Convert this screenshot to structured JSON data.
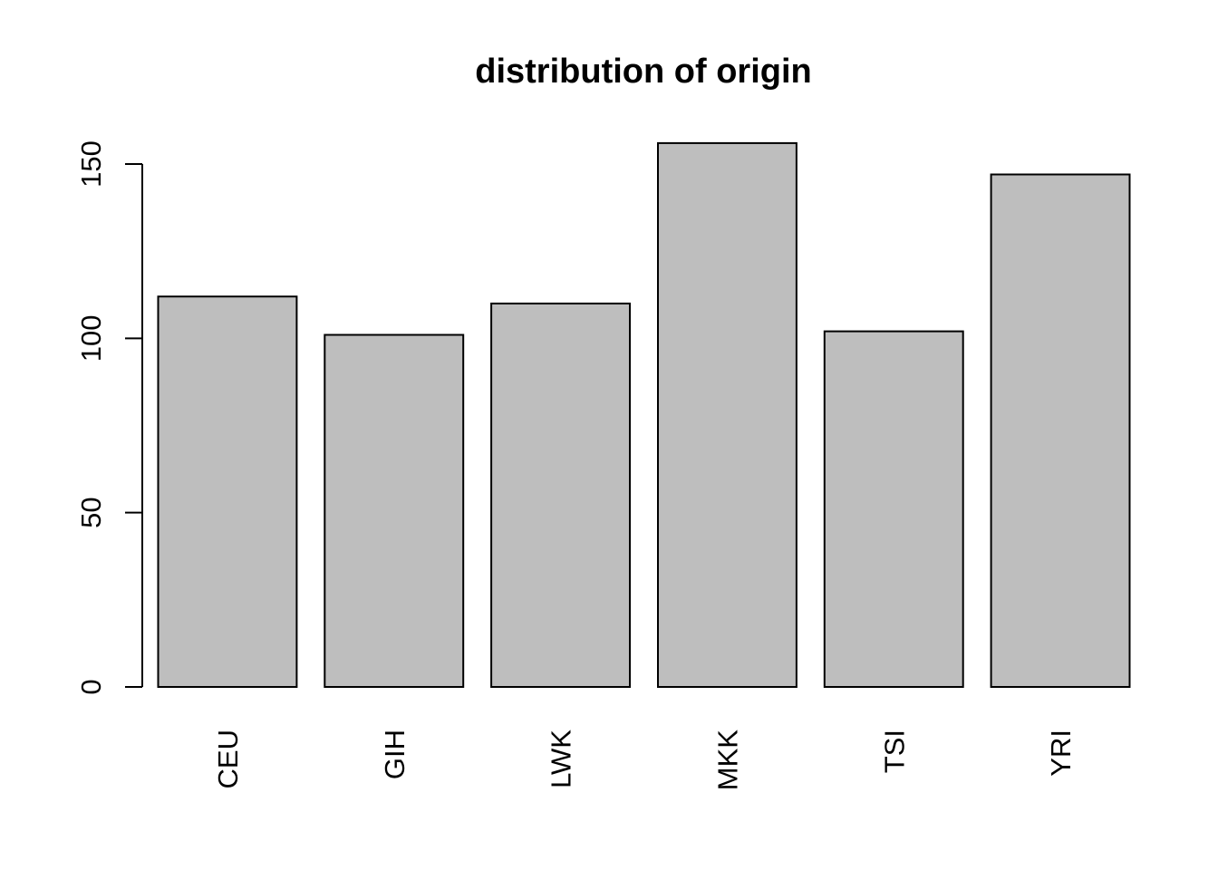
{
  "chart_data": {
    "type": "bar",
    "title": "distribution of origin",
    "xlabel": "",
    "ylabel": "",
    "categories": [
      "CEU",
      "GIH",
      "LWK",
      "MKK",
      "TSI",
      "YRI"
    ],
    "values": [
      112,
      101,
      110,
      156,
      102,
      147
    ],
    "ylim": [
      0,
      160
    ],
    "yticks": [
      0,
      50,
      100,
      150
    ],
    "y_tick_labels": [
      "0",
      "50",
      "100",
      "150"
    ],
    "x_tick_label_orientation": "vertical",
    "grid": false,
    "legend": "none",
    "colors": {
      "bar_fill": "#bebebe",
      "bar_stroke": "#000000",
      "background": "#ffffff"
    }
  }
}
